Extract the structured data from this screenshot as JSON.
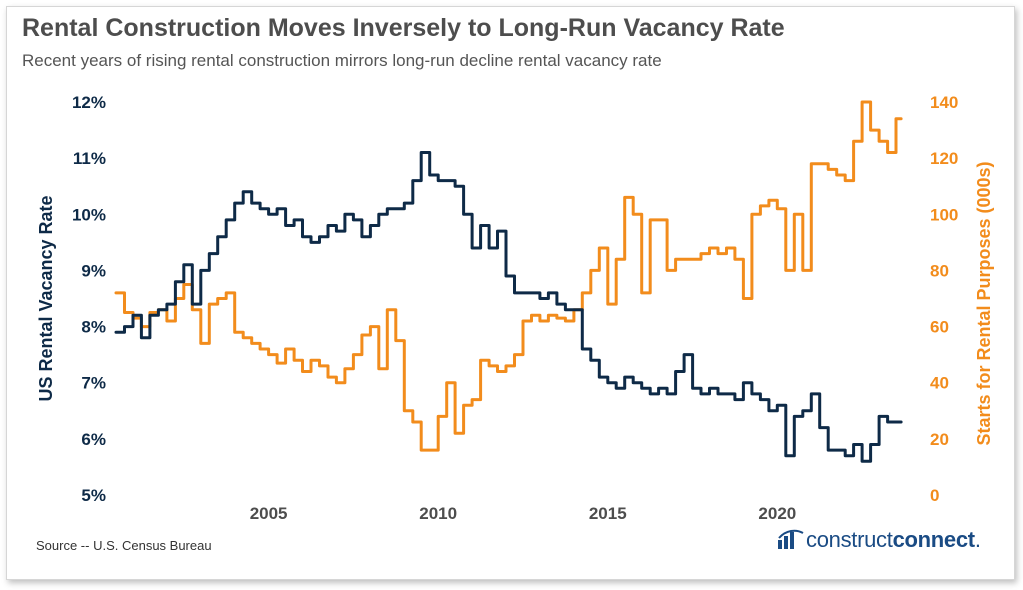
{
  "header": {
    "title": "Rental Construction Moves Inversely to Long-Run Vacancy Rate",
    "subtitle": "Recent years of rising rental construction mirrors long-run decline rental vacancy rate"
  },
  "footer": {
    "source": "Source -- U.S. Census Bureau",
    "logo_regular": "construct",
    "logo_bold": "connect",
    "logo_dot": "."
  },
  "colors": {
    "vacancy": "#0e2a47",
    "starts": "#f28c1c",
    "axis_text_left": "#0e2a47",
    "axis_text_right": "#f28c1c",
    "logo": "#1a4b84"
  },
  "chart_data": {
    "type": "line",
    "ylabel_left": "US Rental Vacancy Rate",
    "ylabel_right": "Starts for Rental Purposes (000s)",
    "xlim": [
      2000.5,
      2024.0
    ],
    "ylim_left": [
      5,
      12
    ],
    "ylim_right": [
      0,
      140
    ],
    "xticks": [
      2005,
      2010,
      2015,
      2020
    ],
    "yticks_left": [
      "5%",
      "6%",
      "7%",
      "8%",
      "9%",
      "10%",
      "11%",
      "12%"
    ],
    "yticks_right": [
      "0",
      "20",
      "40",
      "60",
      "80",
      "100",
      "120",
      "140"
    ],
    "grid": false,
    "series": [
      {
        "name": "US Rental Vacancy Rate",
        "axis": "left",
        "unit": "%",
        "x": [
          2000.5,
          2000.75,
          2001.0,
          2001.25,
          2001.5,
          2001.75,
          2002.0,
          2002.25,
          2002.5,
          2002.75,
          2003.0,
          2003.25,
          2003.5,
          2003.75,
          2004.0,
          2004.25,
          2004.5,
          2004.75,
          2005.0,
          2005.25,
          2005.5,
          2005.75,
          2006.0,
          2006.25,
          2006.5,
          2006.75,
          2007.0,
          2007.25,
          2007.5,
          2007.75,
          2008.0,
          2008.25,
          2008.5,
          2008.75,
          2009.0,
          2009.25,
          2009.5,
          2009.75,
          2010.0,
          2010.25,
          2010.5,
          2010.75,
          2011.0,
          2011.25,
          2011.5,
          2011.75,
          2012.0,
          2012.25,
          2012.5,
          2012.75,
          2013.0,
          2013.25,
          2013.5,
          2013.75,
          2014.0,
          2014.25,
          2014.5,
          2014.75,
          2015.0,
          2015.25,
          2015.5,
          2015.75,
          2016.0,
          2016.25,
          2016.5,
          2016.75,
          2017.0,
          2017.25,
          2017.5,
          2017.75,
          2018.0,
          2018.25,
          2018.5,
          2018.75,
          2019.0,
          2019.25,
          2019.5,
          2019.75,
          2020.0,
          2020.25,
          2020.5,
          2020.75,
          2021.0,
          2021.25,
          2021.5,
          2021.75,
          2022.0,
          2022.25,
          2022.5,
          2022.75,
          2023.0,
          2023.25,
          2023.5
        ],
        "values": [
          7.9,
          8.0,
          8.2,
          7.8,
          8.2,
          8.3,
          8.4,
          8.8,
          9.1,
          8.4,
          9.0,
          9.3,
          9.6,
          9.9,
          10.2,
          10.4,
          10.2,
          10.1,
          10.0,
          10.1,
          9.8,
          9.9,
          9.6,
          9.5,
          9.6,
          9.8,
          9.7,
          10.0,
          9.9,
          9.6,
          9.8,
          10.0,
          10.1,
          10.1,
          10.2,
          10.6,
          11.1,
          10.7,
          10.6,
          10.6,
          10.5,
          10.0,
          9.4,
          9.8,
          9.4,
          9.7,
          8.9,
          8.6,
          8.6,
          8.6,
          8.5,
          8.6,
          8.4,
          8.3,
          8.3,
          7.6,
          7.4,
          7.1,
          7.0,
          6.9,
          7.1,
          7.0,
          6.9,
          6.8,
          6.9,
          6.8,
          7.2,
          7.5,
          6.9,
          6.8,
          6.9,
          6.8,
          6.8,
          6.7,
          7.0,
          6.8,
          6.7,
          6.5,
          6.6,
          5.7,
          6.4,
          6.5,
          6.8,
          6.2,
          5.8,
          5.8,
          5.7,
          5.9,
          5.6,
          5.9,
          6.4,
          6.3,
          6.3
        ]
      },
      {
        "name": "Starts for Rental Purposes (000s)",
        "axis": "right",
        "unit": "000s",
        "x": [
          2000.5,
          2000.75,
          2001.0,
          2001.25,
          2001.5,
          2001.75,
          2002.0,
          2002.25,
          2002.5,
          2002.75,
          2003.0,
          2003.25,
          2003.5,
          2003.75,
          2004.0,
          2004.25,
          2004.5,
          2004.75,
          2005.0,
          2005.25,
          2005.5,
          2005.75,
          2006.0,
          2006.25,
          2006.5,
          2006.75,
          2007.0,
          2007.25,
          2007.5,
          2007.75,
          2008.0,
          2008.25,
          2008.5,
          2008.75,
          2009.0,
          2009.25,
          2009.5,
          2009.75,
          2010.0,
          2010.25,
          2010.5,
          2010.75,
          2011.0,
          2011.25,
          2011.5,
          2011.75,
          2012.0,
          2012.25,
          2012.5,
          2012.75,
          2013.0,
          2013.25,
          2013.5,
          2013.75,
          2014.0,
          2014.25,
          2014.5,
          2014.75,
          2015.0,
          2015.25,
          2015.5,
          2015.75,
          2016.0,
          2016.25,
          2016.5,
          2016.75,
          2017.0,
          2017.25,
          2017.5,
          2017.75,
          2018.0,
          2018.25,
          2018.5,
          2018.75,
          2019.0,
          2019.25,
          2019.5,
          2019.75,
          2020.0,
          2020.25,
          2020.5,
          2020.75,
          2021.0,
          2021.25,
          2021.5,
          2021.75,
          2022.0,
          2022.25,
          2022.5,
          2022.75,
          2023.0,
          2023.25,
          2023.5
        ],
        "values": [
          72,
          65,
          63,
          60,
          65,
          66,
          62,
          70,
          75,
          66,
          54,
          68,
          70,
          72,
          58,
          56,
          54,
          52,
          50,
          47,
          52,
          48,
          44,
          48,
          46,
          42,
          40,
          45,
          50,
          57,
          60,
          45,
          66,
          55,
          30,
          26,
          16,
          16,
          28,
          40,
          22,
          32,
          34,
          48,
          46,
          44,
          46,
          50,
          62,
          64,
          62,
          64,
          63,
          62,
          66,
          72,
          80,
          88,
          68,
          84,
          106,
          100,
          72,
          98,
          98,
          80,
          84,
          84,
          84,
          86,
          88,
          86,
          88,
          84,
          70,
          100,
          103,
          105,
          102,
          80,
          100,
          80,
          118,
          118,
          116,
          114,
          112,
          126,
          140,
          130,
          126,
          122,
          134
        ]
      }
    ]
  }
}
